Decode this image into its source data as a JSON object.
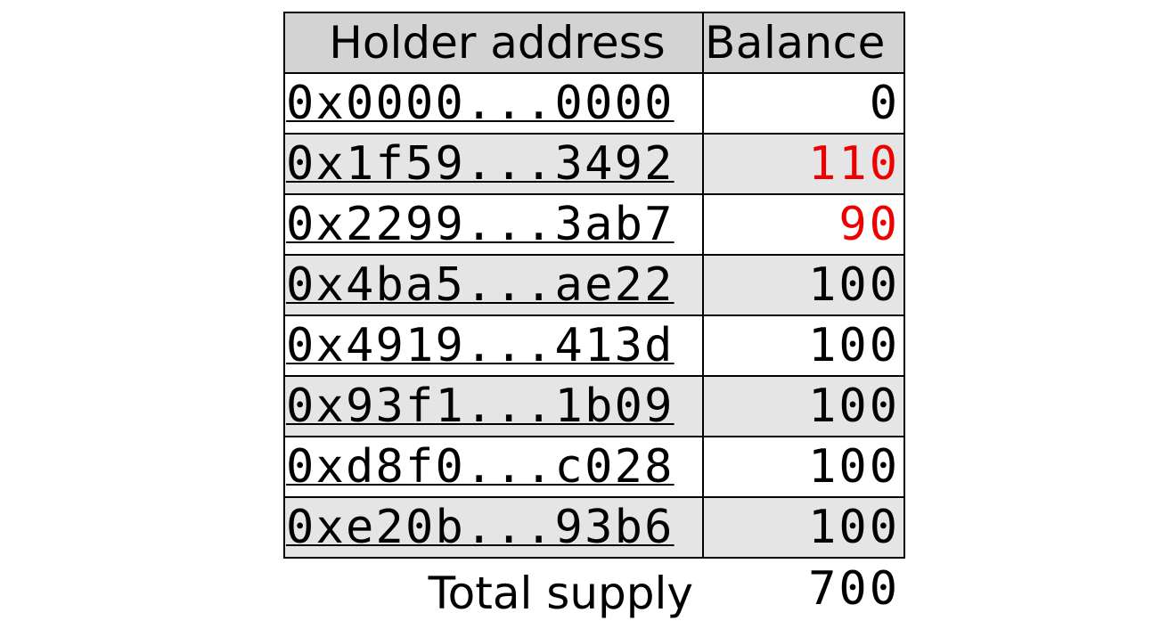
{
  "table": {
    "headers": {
      "address": "Holder address",
      "balance": "Balance"
    },
    "highlight_color": "#ee0000",
    "row_shade_color": "#e5e5e5",
    "header_color": "#d3d3d3",
    "rows": [
      {
        "address": "0x0000...0000",
        "balance": "0",
        "highlighted": false
      },
      {
        "address": "0x1f59...3492",
        "balance": "110",
        "highlighted": true
      },
      {
        "address": "0x2299...3ab7",
        "balance": "90",
        "highlighted": true
      },
      {
        "address": "0x4ba5...ae22",
        "balance": "100",
        "highlighted": false
      },
      {
        "address": "0x4919...413d",
        "balance": "100",
        "highlighted": false
      },
      {
        "address": "0x93f1...1b09",
        "balance": "100",
        "highlighted": false
      },
      {
        "address": "0xd8f0...c028",
        "balance": "100",
        "highlighted": false
      },
      {
        "address": "0xe20b...93b6",
        "balance": "100",
        "highlighted": false
      }
    ]
  },
  "total": {
    "label": "Total supply",
    "value": "700"
  }
}
